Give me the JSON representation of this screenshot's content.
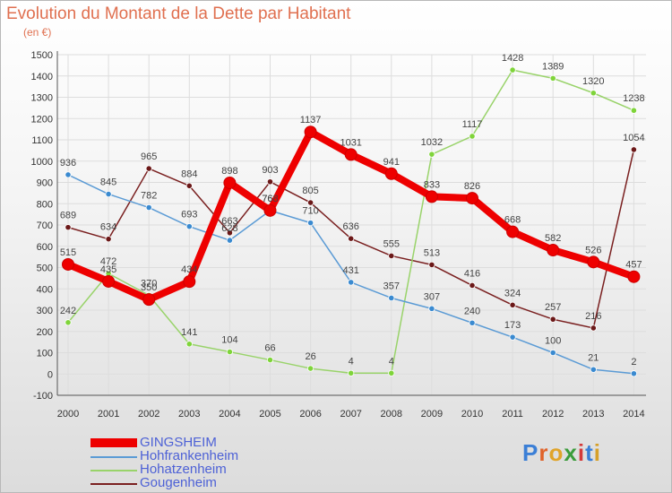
{
  "header": {
    "title": "Evolution du Montant de la Dette par Habitant",
    "unit": "(en €)"
  },
  "logo": {
    "text": "Proxiti"
  },
  "colors": {
    "title": "#e07050",
    "legend_text": "#4d61d6",
    "grid": "#dddddd",
    "axis": "#555555"
  },
  "chart_data": {
    "type": "line",
    "title": "Evolution du Montant de la Dette par Habitant",
    "ylabel": "(en €)",
    "ylim": [
      -100,
      1500
    ],
    "yticks": [
      -100,
      0,
      100,
      200,
      300,
      400,
      500,
      600,
      700,
      800,
      900,
      1000,
      1100,
      1200,
      1300,
      1400,
      1500
    ],
    "categories": [
      "2000",
      "2001",
      "2002",
      "2003",
      "2004",
      "2005",
      "2006",
      "2007",
      "2008",
      "2009",
      "2010",
      "2011",
      "2012",
      "2013",
      "2014"
    ],
    "grid": true,
    "legend_position": "bottom-left",
    "series": [
      {
        "name": "Gougenheim",
        "color": "#7a2020",
        "marker_color": "#6b1818",
        "values": [
          689,
          634,
          965,
          884,
          663,
          903,
          805,
          636,
          555,
          513,
          416,
          324,
          257,
          216,
          1054
        ]
      },
      {
        "name": "Hohatzenheim",
        "color": "#99d36a",
        "marker_color": "#7fd43a",
        "values": [
          242,
          472,
          370,
          141,
          104,
          66,
          26,
          4,
          4,
          1032,
          1117,
          1428,
          1389,
          1320,
          1238
        ]
      },
      {
        "name": "Hohfrankenheim",
        "color": "#5b9bd5",
        "marker_color": "#3a8ad0",
        "values": [
          936,
          845,
          782,
          693,
          628,
          768,
          710,
          431,
          357,
          307,
          240,
          173,
          100,
          21,
          2
        ]
      },
      {
        "name": "GINGSHEIM",
        "color": "#ee0000",
        "marker_color": "#ee0000",
        "values": [
          515,
          435,
          350,
          434,
          898,
          768,
          1137,
          1031,
          941,
          833,
          826,
          668,
          582,
          526,
          457
        ]
      }
    ],
    "legend": [
      "GINGSHEIM",
      "Hohfrankenheim",
      "Hohatzenheim",
      "Gougenheim"
    ]
  }
}
